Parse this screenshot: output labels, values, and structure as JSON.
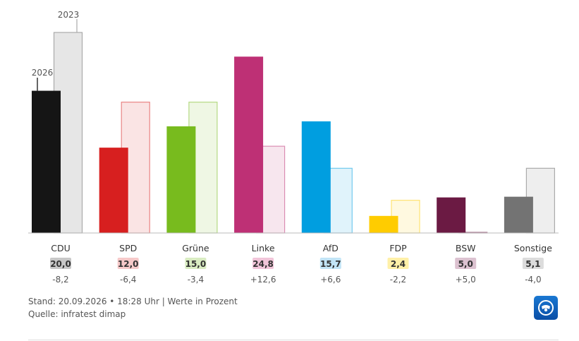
{
  "chart_data": {
    "type": "bar",
    "categories": [
      "CDU",
      "SPD",
      "Grüne",
      "Linke",
      "AfD",
      "FDP",
      "BSW",
      "Sonstige"
    ],
    "series": [
      {
        "name": "2026",
        "values": [
          20.0,
          12.0,
          15.0,
          24.8,
          15.7,
          2.4,
          5.0,
          5.1
        ]
      },
      {
        "name": "2023",
        "values": [
          28.2,
          18.4,
          18.4,
          12.2,
          9.1,
          4.6,
          0.0,
          9.1
        ]
      }
    ],
    "value_labels": [
      "20,0",
      "12,0",
      "15,0",
      "24,8",
      "15,7",
      "2,4",
      "5,0",
      "5,1"
    ],
    "diff_labels": [
      "-8,2",
      "-6,4",
      "-3,4",
      "+12,6",
      "+6,6",
      "-2,2",
      "+5,0",
      "-4,0"
    ],
    "colors": [
      "#151515",
      "#d71f1f",
      "#78bb1e",
      "#be3075",
      "#009ee0",
      "#ffcc00",
      "#6b1a43",
      "#737373"
    ],
    "badge_colors": [
      "#c8c8c8",
      "#f6c9c9",
      "#d9ecc2",
      "#f1c5d9",
      "#c2e4f6",
      "#fff0a8",
      "#dcc2d0",
      "#dcdcdc"
    ],
    "ylim": [
      0,
      30
    ],
    "annotations": {
      "new_year": "2026",
      "old_year": "2023"
    }
  },
  "footer": {
    "stand": "Stand: 20.09.2026 • 18:28 Uhr | Werte in Prozent",
    "quelle": "Quelle: infratest dimap"
  },
  "logo": {
    "icon": "tagesschau-logo-icon",
    "color": "#1366c2"
  }
}
